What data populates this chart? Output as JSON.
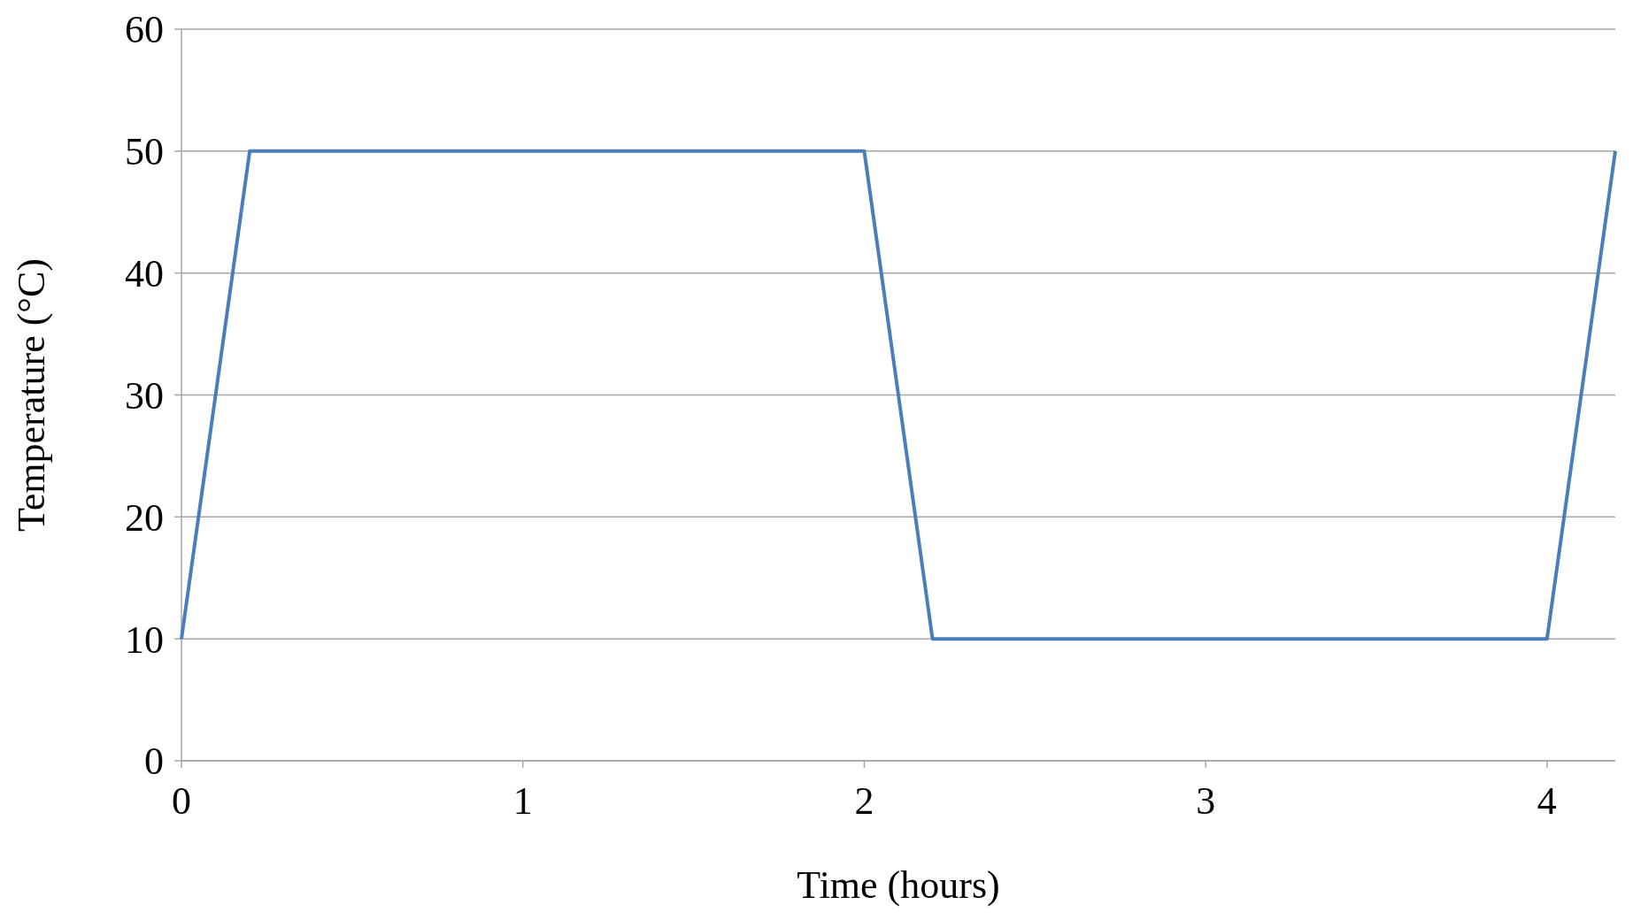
{
  "chart_data": {
    "type": "line",
    "xlabel": "Time (hours)",
    "ylabel": "Temperature (°C)",
    "x": [
      0,
      0.2,
      2,
      2.2,
      4,
      4.2
    ],
    "series": [
      {
        "color": "#4a7ebb",
        "values": [
          10,
          50,
          50,
          10,
          10,
          50
        ]
      }
    ],
    "xlim": [
      0,
      4.2
    ],
    "xticks": [
      0,
      1,
      2,
      3,
      4
    ],
    "ylim": [
      0,
      60
    ],
    "yticks": [
      0,
      10,
      20,
      30,
      40,
      50,
      60
    ],
    "grid": "y",
    "marker": "none",
    "line_style": "solid"
  }
}
